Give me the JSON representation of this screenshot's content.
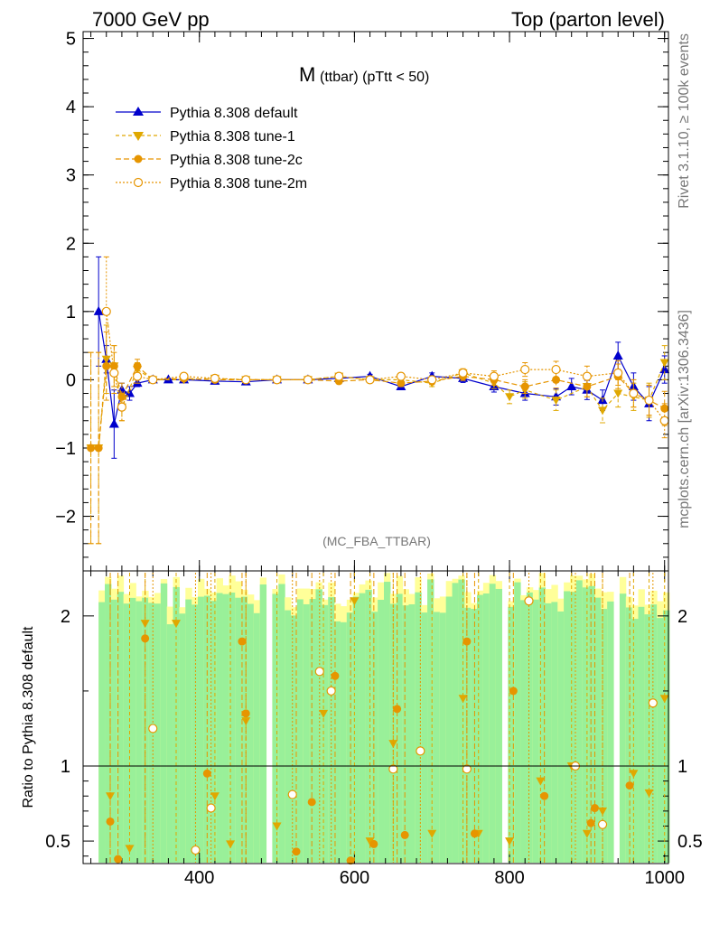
{
  "header": {
    "left": "7000 GeV pp",
    "right": "Top (parton level)"
  },
  "side": {
    "rivet": "Rivet 3.1.10, ≥ 100k events",
    "mcplots": "mcplots.cern.ch [arXiv:1306.3436]"
  },
  "chart_data": {
    "type": "line",
    "title_main": "M",
    "title_sub": "(ttbar) (pTtt < 50)",
    "watermark": "(MC_FBA_TTBAR)",
    "xlabel": "",
    "ylabel": "",
    "ratio_ylabel": "Ratio to Pythia 8.308 default",
    "xlim": [
      250,
      1005
    ],
    "ylim": [
      -2.8,
      5.1
    ],
    "ratio_ylim": [
      0.35,
      2.3
    ],
    "x_ticks": [
      "400",
      "600",
      "800",
      "1000"
    ],
    "x_tick_values": [
      400,
      600,
      800,
      1000
    ],
    "y_ticks": [
      "5",
      "4",
      "3",
      "2",
      "1",
      "0",
      "−1",
      "−2"
    ],
    "y_tick_values": [
      5,
      4,
      3,
      2,
      1,
      0,
      -1,
      -2
    ],
    "ratio_ticks": [
      "2",
      "1",
      "0.5"
    ],
    "ratio_tick_values": [
      2,
      1,
      0.5
    ],
    "series": [
      {
        "name": "Pythia 8.308 default",
        "color": "#0000cc",
        "marker": "triangle-up",
        "dash": "none",
        "x": [
          270,
          280,
          290,
          300,
          310,
          320,
          340,
          360,
          380,
          420,
          460,
          500,
          540,
          580,
          620,
          660,
          700,
          740,
          780,
          820,
          860,
          880,
          900,
          920,
          940,
          960,
          980,
          1000
        ],
        "values": [
          1.0,
          0.3,
          -0.65,
          -0.15,
          -0.2,
          -0.05,
          0.0,
          0.0,
          0.0,
          -0.02,
          -0.03,
          0.0,
          0.0,
          0.02,
          0.05,
          -0.1,
          0.05,
          0.02,
          -0.1,
          -0.2,
          -0.25,
          -0.1,
          -0.15,
          -0.3,
          0.35,
          -0.1,
          -0.35,
          0.15
        ],
        "errors": [
          0.8,
          0.2,
          0.5,
          0.1,
          0.1,
          0.05,
          0.02,
          0.02,
          0.02,
          0.02,
          0.02,
          0.02,
          0.02,
          0.03,
          0.03,
          0.04,
          0.05,
          0.06,
          0.08,
          0.1,
          0.12,
          0.12,
          0.14,
          0.15,
          0.2,
          0.2,
          0.25,
          0.2
        ]
      },
      {
        "name": "Pythia 8.308 tune-1",
        "color": "#e0a800",
        "marker": "triangle-down",
        "dash": "4,3",
        "x": [
          260,
          270,
          280,
          290,
          300,
          320,
          340,
          380,
          420,
          460,
          500,
          540,
          580,
          620,
          660,
          700,
          740,
          780,
          800,
          820,
          860,
          900,
          920,
          940,
          960,
          980,
          1000
        ],
        "values": [
          -1.0,
          -1.0,
          0.3,
          0.2,
          -0.4,
          0.15,
          0.0,
          0.0,
          0.02,
          0.0,
          0.0,
          0.0,
          0.05,
          0.0,
          0.0,
          -0.05,
          0.1,
          -0.05,
          -0.25,
          -0.15,
          -0.3,
          -0.1,
          -0.45,
          -0.2,
          -0.25,
          -0.3,
          0.25
        ],
        "errors": [
          1.4,
          1.4,
          0.5,
          0.3,
          0.2,
          0.1,
          0.02,
          0.02,
          0.02,
          0.02,
          0.02,
          0.03,
          0.03,
          0.04,
          0.05,
          0.05,
          0.06,
          0.08,
          0.1,
          0.12,
          0.15,
          0.15,
          0.18,
          0.2,
          0.2,
          0.25,
          0.25
        ]
      },
      {
        "name": "Pythia 8.308 tune-2c",
        "color": "#e69500",
        "marker": "circle-filled",
        "dash": "6,3",
        "x": [
          260,
          270,
          280,
          290,
          300,
          320,
          340,
          380,
          420,
          460,
          500,
          540,
          580,
          620,
          660,
          700,
          740,
          780,
          820,
          860,
          900,
          940,
          960,
          980,
          1000
        ],
        "values": [
          -1.0,
          -1.0,
          0.2,
          0.2,
          -0.25,
          0.2,
          0.0,
          0.02,
          0.0,
          0.0,
          0.0,
          0.0,
          -0.02,
          0.0,
          -0.05,
          -0.02,
          0.05,
          0.0,
          -0.1,
          0.0,
          -0.1,
          0.05,
          -0.2,
          -0.3,
          -0.42
        ],
        "errors": [
          1.4,
          1.4,
          0.5,
          0.3,
          0.2,
          0.1,
          0.02,
          0.02,
          0.02,
          0.02,
          0.02,
          0.03,
          0.03,
          0.04,
          0.05,
          0.05,
          0.06,
          0.08,
          0.1,
          0.12,
          0.15,
          0.18,
          0.2,
          0.22,
          0.25
        ]
      },
      {
        "name": "Pythia 8.308 tune-2m",
        "color": "#e69500",
        "marker": "circle-open",
        "dash": "2,2",
        "x": [
          280,
          290,
          300,
          320,
          340,
          380,
          420,
          460,
          500,
          540,
          580,
          620,
          660,
          700,
          740,
          780,
          820,
          860,
          900,
          940,
          960,
          980,
          1000
        ],
        "values": [
          1.0,
          0.1,
          -0.4,
          0.05,
          0.0,
          0.05,
          0.02,
          0.0,
          0.0,
          0.0,
          0.05,
          0.0,
          0.05,
          0.0,
          0.1,
          0.05,
          0.15,
          0.15,
          0.05,
          0.1,
          -0.2,
          -0.3,
          -0.6
        ],
        "errors": [
          0.8,
          0.3,
          0.2,
          0.1,
          0.02,
          0.02,
          0.02,
          0.02,
          0.02,
          0.03,
          0.03,
          0.04,
          0.05,
          0.05,
          0.06,
          0.08,
          0.1,
          0.12,
          0.15,
          0.18,
          0.2,
          0.22,
          0.25
        ]
      }
    ],
    "ratio_series": [
      {
        "name": "Pythia 8.308 tune-1",
        "x": [
          285,
          310,
          330,
          370,
          420,
          440,
          460,
          500,
          560,
          600,
          620,
          650,
          700,
          740,
          760,
          800,
          840,
          880,
          900,
          920,
          960,
          980,
          1000
        ],
        "values": [
          0.8,
          0.45,
          1.95,
          1.95,
          0.8,
          0.48,
          1.3,
          0.6,
          1.35,
          2.1,
          0.5,
          1.15,
          0.55,
          1.45,
          0.55,
          0.5,
          0.9,
          1.0,
          0.55,
          0.7,
          0.95,
          0.82,
          1.45
        ]
      },
      {
        "name": "Pythia 8.308 tune-2c",
        "x": [
          285,
          295,
          330,
          410,
          455,
          460,
          525,
          545,
          575,
          595,
          625,
          655,
          665,
          745,
          755,
          805,
          845,
          905,
          910,
          955
        ],
        "values": [
          0.63,
          0.38,
          1.85,
          0.95,
          1.83,
          1.35,
          0.43,
          0.76,
          1.6,
          0.37,
          0.48,
          1.38,
          0.54,
          1.83,
          0.55,
          1.5,
          0.8,
          0.62,
          0.72,
          0.87
        ]
      },
      {
        "name": "Pythia 8.308 tune-2m",
        "x": [
          340,
          395,
          415,
          520,
          555,
          570,
          650,
          685,
          745,
          825,
          885,
          920,
          985
        ],
        "values": [
          1.25,
          0.44,
          0.72,
          0.81,
          1.63,
          1.5,
          0.98,
          1.1,
          0.98,
          2.1,
          1.0,
          0.61,
          1.42
        ]
      }
    ]
  }
}
